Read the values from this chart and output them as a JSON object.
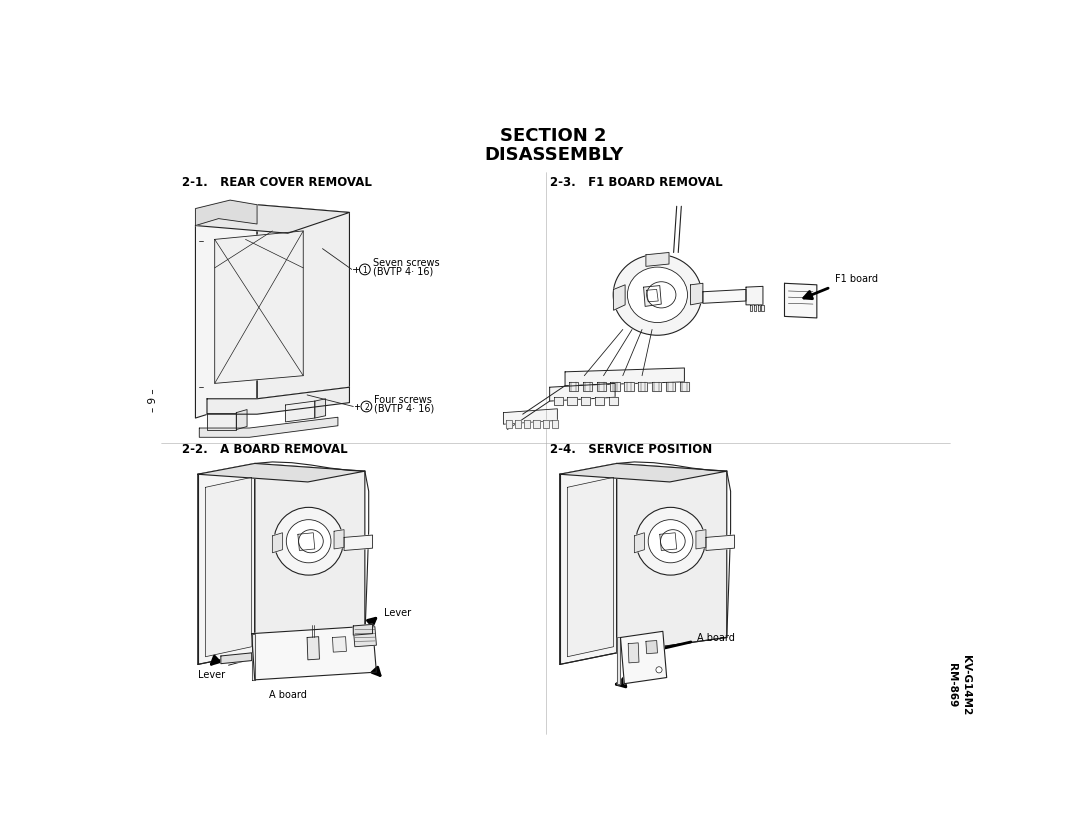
{
  "title_line1": "SECTION 2",
  "title_line2": "DISASSEMBLY",
  "section_21": "2-1.   REAR COVER REMOVAL",
  "section_22": "2-2.   A BOARD REMOVAL",
  "section_23": "2-3.   F1 BOARD REMOVAL",
  "section_24": "2-4.   SERVICE POSITION",
  "label_seven_screws": "Seven screws",
  "label_bvtp_16_1": "(BVTP 4· 16)",
  "label_four_screws": "Four screws",
  "label_bvtp_16_2": "(BVTP 4· 16)",
  "label_f1board": "F1 board",
  "label_lever1": "Lever",
  "label_lever2": "Lever",
  "label_aboard1": "A board",
  "label_aboard2": "A board",
  "side_text": "– 9 –",
  "footer_text": "KV-G14M2\nRM-869",
  "bg_color": "#ffffff",
  "text_color": "#000000",
  "title_fontsize": 13,
  "section_fontsize": 8.5,
  "label_fontsize": 7,
  "side_fontsize": 7.5,
  "footer_fontsize": 7.5
}
